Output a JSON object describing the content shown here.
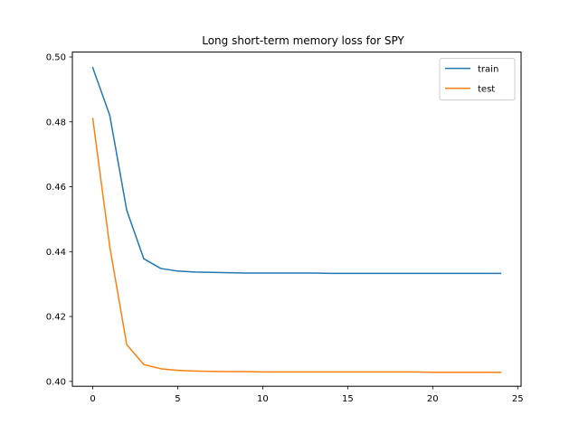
{
  "chart_data": {
    "type": "line",
    "title": "Long short-term memory loss for SPY",
    "xlabel": "",
    "ylabel": "",
    "xlim": [
      -1.2,
      25.2
    ],
    "ylim": [
      0.3985,
      0.5015
    ],
    "xticks": [
      0,
      5,
      10,
      15,
      20,
      25
    ],
    "yticks": [
      0.4,
      0.42,
      0.44,
      0.46,
      0.48,
      0.5
    ],
    "xtick_labels": [
      "0",
      "5",
      "10",
      "15",
      "20",
      "25"
    ],
    "ytick_labels": [
      "0.40",
      "0.42",
      "0.44",
      "0.46",
      "0.48",
      "0.50"
    ],
    "grid": false,
    "legend_position": "top-right",
    "x": [
      0,
      1,
      2,
      3,
      4,
      5,
      6,
      7,
      8,
      9,
      10,
      11,
      12,
      13,
      14,
      15,
      16,
      17,
      18,
      19,
      20,
      21,
      22,
      23,
      24
    ],
    "series": [
      {
        "name": "train",
        "color": "#1f77b4",
        "values": [
          0.4967,
          0.482,
          0.4527,
          0.4378,
          0.4348,
          0.434,
          0.4337,
          0.4336,
          0.4335,
          0.4334,
          0.4334,
          0.4334,
          0.4334,
          0.4334,
          0.4333,
          0.4333,
          0.4333,
          0.4333,
          0.4333,
          0.4333,
          0.4333,
          0.4333,
          0.4333,
          0.4333,
          0.4333
        ]
      },
      {
        "name": "test",
        "color": "#ff7f0e",
        "values": [
          0.481,
          0.4415,
          0.4113,
          0.4052,
          0.4039,
          0.4034,
          0.4032,
          0.4031,
          0.403,
          0.403,
          0.4029,
          0.4029,
          0.4029,
          0.4029,
          0.4029,
          0.4029,
          0.4029,
          0.4029,
          0.4029,
          0.4029,
          0.4028,
          0.4028,
          0.4028,
          0.4028,
          0.4028
        ]
      }
    ]
  }
}
